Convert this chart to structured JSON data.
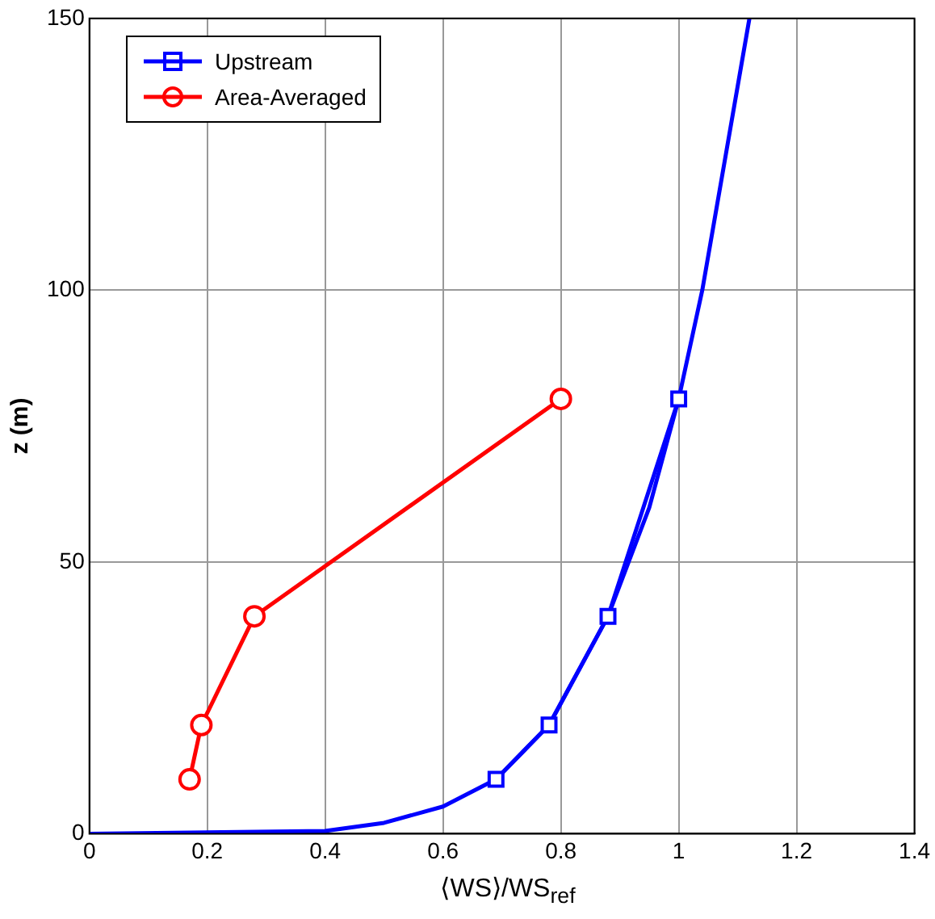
{
  "chart_data": {
    "type": "line",
    "xlabel": "⟨WS⟩/WS$_{ref}$",
    "ylabel": "z (m)",
    "xlim": [
      0,
      1.4
    ],
    "xticks": [
      0,
      0.2,
      0.4,
      0.6,
      0.8,
      1,
      1.2,
      1.4
    ],
    "ylim": [
      0,
      150
    ],
    "yticks": [
      0,
      50,
      100,
      150
    ],
    "grid": true,
    "legend": "top left",
    "series": [
      {
        "name": "Upstream",
        "color": "#0000ff",
        "marker": "square",
        "x": [
          0.69,
          0.78,
          0.88,
          1.0
        ],
        "values": [
          10,
          20,
          40,
          80
        ]
      },
      {
        "name": "Area-Averaged",
        "color": "#ff0000",
        "marker": "circle",
        "x": [
          0.17,
          0.19,
          0.28,
          0.8
        ],
        "values": [
          10,
          20,
          40,
          80
        ]
      },
      {
        "color": "#0000ff",
        "marker": "none",
        "x": [
          0,
          0.4,
          0.5,
          0.6,
          0.69,
          0.78,
          0.88,
          0.95,
          1.0,
          1.04,
          1.08,
          1.12
        ],
        "values": [
          0,
          0.5,
          2,
          5,
          10,
          20,
          40,
          60,
          80,
          100,
          125,
          150
        ]
      }
    ]
  }
}
